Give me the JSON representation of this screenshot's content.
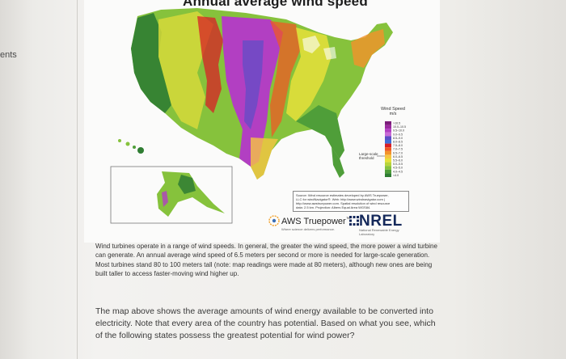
{
  "sidebar": {
    "label": "ents"
  },
  "map": {
    "title": "Annual average wind speed",
    "legend": {
      "title": "Wind Speed",
      "unit": "m/s",
      "side_label_line1": "Large-scale",
      "side_label_line2": "threshold",
      "entries": [
        {
          "label": ">10.5",
          "color": "#7c1d7a"
        },
        {
          "label": "10.0–10.5",
          "color": "#9b2ba0"
        },
        {
          "label": "9.5–10.0",
          "color": "#b23fc2"
        },
        {
          "label": "9.0–9.5",
          "color": "#c96ad6"
        },
        {
          "label": "8.5–9.0",
          "color": "#5d4ec6"
        },
        {
          "label": "8.0–8.5",
          "color": "#3f6fd8"
        },
        {
          "label": "7.5–8.0",
          "color": "#d81f26"
        },
        {
          "label": "7.0–7.5",
          "color": "#ee5a24"
        },
        {
          "label": "6.5–7.0",
          "color": "#f2922b"
        },
        {
          "label": "6.0–6.5",
          "color": "#f6c542"
        },
        {
          "label": "5.5–6.0",
          "color": "#e6e03a"
        },
        {
          "label": "5.0–5.5",
          "color": "#b8d43a"
        },
        {
          "label": "4.5–5.0",
          "color": "#86c23c"
        },
        {
          "label": "4.0–4.5",
          "color": "#4f9e39"
        },
        {
          "label": "<4.0",
          "color": "#2f7d32"
        }
      ]
    },
    "source": {
      "line1": "Source: Wind resource estimates developed by AWS Truepower,",
      "line2": "LLC for windNavigator®. Web: http://www.windnavigator.com |",
      "line3": "http://www.awstruepower.com. Spatial resolution of wind resource",
      "line4": "data: 2.5 km. Projection: Albers Equal Area WGS84."
    },
    "logos": {
      "aws": "AWS Truepower",
      "aws_mark": "™",
      "aws_tagline": "Where science delivers performance.",
      "nrel": "NREL",
      "nrel_tagline": "National Renewable Energy Laboratory"
    }
  },
  "caption": "Wind turbines operate in a range of wind speeds. In general, the greater the wind speed, the more power a wind turbine can generate. An annual average wind speed of 6.5 meters per second or more is needed for large-scale generation. Most turbines stand 80 to 100 meters tall (note: map readings were made at 80 meters), although new ones are being built taller to access faster-moving wind higher up.",
  "question": "The map above shows the average amounts of wind energy available to be converted into electricity. Note that every area of the country has potential. Based on what you see, which of the following states possess the greatest potential for wind power?",
  "colors": {
    "land_low": "#2f7d32",
    "land_mid": "#b8d43a",
    "plains_high": "#b23fc2",
    "ridge": "#d81f26",
    "water": "#ffffff"
  }
}
